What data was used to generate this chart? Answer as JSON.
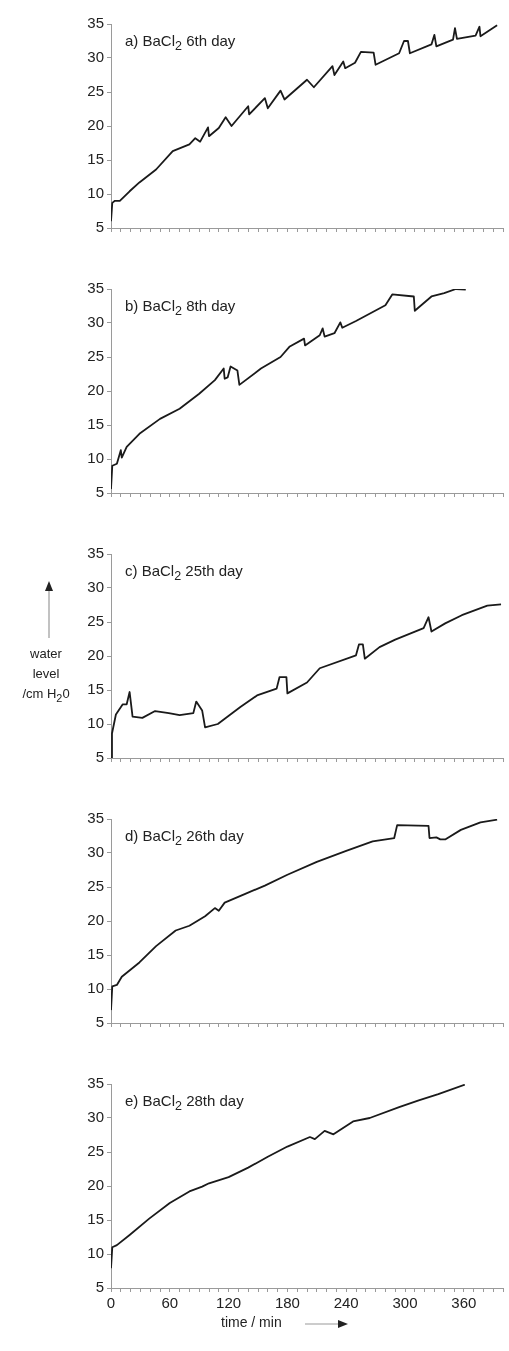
{
  "chart_data": [
    {
      "type": "line",
      "title": "a) BaCl$_{2}$ 6th day",
      "color": "#1a1a1a",
      "marker": "none",
      "tick_labels": "y",
      "xlim": [
        0,
        400
      ],
      "ylim": [
        5,
        35
      ],
      "yticks": [
        5,
        10,
        15,
        20,
        25,
        30,
        35
      ],
      "xticks": [
        0,
        {
          "value": 10,
          "label": null
        },
        {
          "value": 20,
          "label": null
        },
        {
          "value": 30,
          "label": null
        },
        {
          "value": 40,
          "label": null
        },
        {
          "value": 50,
          "label": null
        },
        60,
        {
          "value": 70,
          "label": null
        },
        {
          "value": 80,
          "label": null
        },
        {
          "value": 90,
          "label": null
        },
        {
          "value": 100,
          "label": null
        },
        {
          "value": 110,
          "label": null
        },
        120,
        {
          "value": 130,
          "label": null
        },
        {
          "value": 140,
          "label": null
        },
        {
          "value": 150,
          "label": null
        },
        {
          "value": 160,
          "label": null
        },
        {
          "value": 170,
          "label": null
        },
        180,
        {
          "value": 190,
          "label": null
        },
        {
          "value": 200,
          "label": null
        },
        {
          "value": 210,
          "label": null
        },
        {
          "value": 220,
          "label": null
        },
        {
          "value": 230,
          "label": null
        },
        240,
        {
          "value": 250,
          "label": null
        },
        {
          "value": 260,
          "label": null
        },
        {
          "value": 270,
          "label": null
        },
        {
          "value": 280,
          "label": null
        },
        {
          "value": 290,
          "label": null
        },
        300,
        {
          "value": 310,
          "label": null
        },
        {
          "value": 320,
          "label": null
        },
        {
          "value": 330,
          "label": null
        },
        {
          "value": 340,
          "label": null
        },
        {
          "value": 350,
          "label": null
        },
        360,
        {
          "value": 370,
          "label": null
        },
        {
          "value": 380,
          "label": null
        },
        {
          "value": 390,
          "label": null
        },
        {
          "value": 400,
          "label": null
        }
      ],
      "x": [
        0,
        1.3,
        4,
        9,
        19,
        29,
        46,
        63,
        80,
        86,
        91,
        99,
        100,
        110,
        117,
        123,
        140,
        141,
        157,
        160,
        173,
        177,
        200,
        207,
        226,
        228,
        237,
        239,
        249,
        255,
        268,
        270,
        294,
        299,
        303,
        305,
        327,
        330,
        332,
        349,
        351,
        353,
        372,
        376,
        377,
        394
      ],
      "values": [
        6.0,
        8.7,
        9.0,
        9.0,
        10.4,
        11.7,
        13.6,
        16.3,
        17.3,
        18.2,
        17.7,
        19.8,
        18.5,
        19.7,
        21.3,
        20.0,
        22.9,
        21.7,
        24.1,
        22.6,
        25.2,
        23.9,
        26.8,
        25.7,
        28.8,
        27.5,
        29.5,
        28.5,
        29.3,
        30.9,
        30.8,
        29.0,
        30.7,
        32.5,
        32.5,
        30.7,
        32.0,
        33.4,
        31.7,
        32.7,
        34.4,
        32.8,
        33.3,
        34.6,
        33.2,
        34.8
      ]
    },
    {
      "type": "line",
      "title": "b) BaCl$_{2}$ 8th day",
      "color": "#1a1a1a",
      "marker": "none",
      "tick_labels": "y",
      "xlim": [
        0,
        400
      ],
      "ylim": [
        5,
        35
      ],
      "yticks": [
        5,
        10,
        15,
        20,
        25,
        30,
        35
      ],
      "xticks": [
        0,
        {
          "value": 10,
          "label": null
        },
        {
          "value": 20,
          "label": null
        },
        {
          "value": 30,
          "label": null
        },
        {
          "value": 40,
          "label": null
        },
        {
          "value": 50,
          "label": null
        },
        60,
        {
          "value": 70,
          "label": null
        },
        {
          "value": 80,
          "label": null
        },
        {
          "value": 90,
          "label": null
        },
        {
          "value": 100,
          "label": null
        },
        {
          "value": 110,
          "label": null
        },
        120,
        {
          "value": 130,
          "label": null
        },
        {
          "value": 140,
          "label": null
        },
        {
          "value": 150,
          "label": null
        },
        {
          "value": 160,
          "label": null
        },
        {
          "value": 170,
          "label": null
        },
        180,
        {
          "value": 190,
          "label": null
        },
        {
          "value": 200,
          "label": null
        },
        {
          "value": 210,
          "label": null
        },
        {
          "value": 220,
          "label": null
        },
        {
          "value": 230,
          "label": null
        },
        240,
        {
          "value": 250,
          "label": null
        },
        {
          "value": 260,
          "label": null
        },
        {
          "value": 270,
          "label": null
        },
        {
          "value": 280,
          "label": null
        },
        {
          "value": 290,
          "label": null
        },
        300,
        {
          "value": 310,
          "label": null
        },
        {
          "value": 320,
          "label": null
        },
        {
          "value": 330,
          "label": null
        },
        {
          "value": 340,
          "label": null
        },
        {
          "value": 350,
          "label": null
        },
        360,
        {
          "value": 370,
          "label": null
        },
        {
          "value": 380,
          "label": null
        },
        {
          "value": 390,
          "label": null
        },
        {
          "value": 400,
          "label": null
        }
      ],
      "x": [
        0,
        1.3,
        6,
        10,
        11,
        16,
        29,
        50,
        70,
        90,
        106,
        115,
        116,
        119,
        122,
        129,
        131,
        153,
        173,
        182,
        197,
        198,
        213,
        216,
        218,
        228,
        234,
        236,
        250,
        280,
        287,
        309,
        310,
        327,
        340,
        352,
        362
      ],
      "values": [
        5.6,
        9.0,
        9.3,
        11.3,
        10.2,
        11.8,
        13.7,
        15.9,
        17.4,
        19.6,
        21.6,
        23.3,
        21.8,
        22.0,
        23.6,
        23.0,
        20.9,
        23.3,
        25.0,
        26.5,
        27.7,
        26.7,
        28.2,
        29.2,
        28.0,
        28.5,
        30.1,
        29.3,
        30.3,
        32.6,
        34.2,
        33.9,
        31.8,
        33.9,
        34.4,
        35.0,
        34.9
      ]
    },
    {
      "type": "line",
      "title": "c) BaCl$_{2}$ 25th day",
      "ylabel": "water\nlevel\n/cm H$_{2}$0",
      "color": "#1a1a1a",
      "marker": "none",
      "tick_labels": "y",
      "xlim": [
        0,
        400
      ],
      "ylim": [
        5,
        35
      ],
      "yticks": [
        5,
        10,
        15,
        20,
        25,
        30,
        35
      ],
      "xticks": [
        0,
        {
          "value": 10,
          "label": null
        },
        {
          "value": 20,
          "label": null
        },
        {
          "value": 30,
          "label": null
        },
        {
          "value": 40,
          "label": null
        },
        {
          "value": 50,
          "label": null
        },
        60,
        {
          "value": 70,
          "label": null
        },
        {
          "value": 80,
          "label": null
        },
        {
          "value": 90,
          "label": null
        },
        {
          "value": 100,
          "label": null
        },
        {
          "value": 110,
          "label": null
        },
        120,
        {
          "value": 130,
          "label": null
        },
        {
          "value": 140,
          "label": null
        },
        {
          "value": 150,
          "label": null
        },
        {
          "value": 160,
          "label": null
        },
        {
          "value": 170,
          "label": null
        },
        180,
        {
          "value": 190,
          "label": null
        },
        {
          "value": 200,
          "label": null
        },
        {
          "value": 210,
          "label": null
        },
        {
          "value": 220,
          "label": null
        },
        {
          "value": 230,
          "label": null
        },
        240,
        {
          "value": 250,
          "label": null
        },
        {
          "value": 260,
          "label": null
        },
        {
          "value": 270,
          "label": null
        },
        {
          "value": 280,
          "label": null
        },
        {
          "value": 290,
          "label": null
        },
        300,
        {
          "value": 310,
          "label": null
        },
        {
          "value": 320,
          "label": null
        },
        {
          "value": 330,
          "label": null
        },
        {
          "value": 340,
          "label": null
        },
        {
          "value": 350,
          "label": null
        },
        360,
        {
          "value": 370,
          "label": null
        },
        {
          "value": 380,
          "label": null
        },
        {
          "value": 390,
          "label": null
        },
        {
          "value": 400,
          "label": null
        }
      ],
      "x": [
        0,
        1,
        5,
        12,
        16,
        19,
        22,
        32,
        45,
        59,
        70,
        84,
        87,
        93,
        96,
        109,
        132,
        149,
        169,
        172,
        179,
        180,
        200,
        213,
        250,
        253,
        257,
        259,
        274,
        290,
        319,
        324,
        327,
        341,
        358,
        384,
        398
      ],
      "values": [
        5.0,
        8.6,
        11.4,
        12.9,
        12.9,
        14.7,
        11.1,
        10.9,
        11.9,
        11.6,
        11.3,
        11.6,
        13.3,
        12.0,
        9.5,
        10.0,
        12.5,
        14.2,
        15.2,
        16.9,
        16.9,
        14.5,
        16.1,
        18.2,
        20.1,
        21.7,
        21.7,
        19.6,
        21.3,
        22.4,
        24.1,
        25.7,
        23.6,
        24.8,
        26.0,
        27.4,
        27.6
      ]
    },
    {
      "type": "line",
      "title": "d) BaCl$_{2}$ 26th day",
      "color": "#1a1a1a",
      "marker": "none",
      "tick_labels": "y",
      "xlim": [
        0,
        400
      ],
      "ylim": [
        5,
        35
      ],
      "yticks": [
        5,
        10,
        15,
        20,
        25,
        30,
        35
      ],
      "xticks": [
        0,
        {
          "value": 10,
          "label": null
        },
        {
          "value": 20,
          "label": null
        },
        {
          "value": 30,
          "label": null
        },
        {
          "value": 40,
          "label": null
        },
        {
          "value": 50,
          "label": null
        },
        60,
        {
          "value": 70,
          "label": null
        },
        {
          "value": 80,
          "label": null
        },
        {
          "value": 90,
          "label": null
        },
        {
          "value": 100,
          "label": null
        },
        {
          "value": 110,
          "label": null
        },
        120,
        {
          "value": 130,
          "label": null
        },
        {
          "value": 140,
          "label": null
        },
        {
          "value": 150,
          "label": null
        },
        {
          "value": 160,
          "label": null
        },
        {
          "value": 170,
          "label": null
        },
        180,
        {
          "value": 190,
          "label": null
        },
        {
          "value": 200,
          "label": null
        },
        {
          "value": 210,
          "label": null
        },
        {
          "value": 220,
          "label": null
        },
        {
          "value": 230,
          "label": null
        },
        240,
        {
          "value": 250,
          "label": null
        },
        {
          "value": 260,
          "label": null
        },
        {
          "value": 270,
          "label": null
        },
        {
          "value": 280,
          "label": null
        },
        {
          "value": 290,
          "label": null
        },
        300,
        {
          "value": 310,
          "label": null
        },
        {
          "value": 320,
          "label": null
        },
        {
          "value": 330,
          "label": null
        },
        {
          "value": 340,
          "label": null
        },
        {
          "value": 350,
          "label": null
        },
        360,
        {
          "value": 370,
          "label": null
        },
        {
          "value": 380,
          "label": null
        },
        {
          "value": 390,
          "label": null
        },
        {
          "value": 400,
          "label": null
        }
      ],
      "x": [
        0,
        1.3,
        6,
        11,
        29,
        46,
        66,
        80,
        96,
        106,
        110,
        116,
        137,
        157,
        180,
        210,
        240,
        267,
        289,
        292,
        324,
        325,
        332,
        336,
        341,
        357,
        377,
        394
      ],
      "values": [
        6.9,
        10.4,
        10.6,
        11.8,
        13.9,
        16.3,
        18.6,
        19.3,
        20.7,
        21.9,
        21.5,
        22.7,
        24.0,
        25.2,
        26.8,
        28.7,
        30.3,
        31.7,
        32.2,
        34.1,
        34.0,
        32.2,
        32.3,
        32.0,
        32.0,
        33.4,
        34.5,
        34.9
      ]
    },
    {
      "type": "line",
      "title": "e) BaCl$_{2}$ 28th day",
      "xlabel": "time / min",
      "color": "#1a1a1a",
      "marker": "none",
      "xlim": [
        0,
        400
      ],
      "ylim": [
        5,
        35
      ],
      "yticks": [
        5,
        10,
        15,
        20,
        25,
        30,
        35
      ],
      "xticks": [
        0,
        {
          "value": 10,
          "label": null
        },
        {
          "value": 20,
          "label": null
        },
        {
          "value": 30,
          "label": null
        },
        {
          "value": 40,
          "label": null
        },
        {
          "value": 50,
          "label": null
        },
        60,
        {
          "value": 70,
          "label": null
        },
        {
          "value": 80,
          "label": null
        },
        {
          "value": 90,
          "label": null
        },
        {
          "value": 100,
          "label": null
        },
        {
          "value": 110,
          "label": null
        },
        120,
        {
          "value": 130,
          "label": null
        },
        {
          "value": 140,
          "label": null
        },
        {
          "value": 150,
          "label": null
        },
        {
          "value": 160,
          "label": null
        },
        {
          "value": 170,
          "label": null
        },
        180,
        {
          "value": 190,
          "label": null
        },
        {
          "value": 200,
          "label": null
        },
        {
          "value": 210,
          "label": null
        },
        {
          "value": 220,
          "label": null
        },
        {
          "value": 230,
          "label": null
        },
        240,
        {
          "value": 250,
          "label": null
        },
        {
          "value": 260,
          "label": null
        },
        {
          "value": 270,
          "label": null
        },
        {
          "value": 280,
          "label": null
        },
        {
          "value": 290,
          "label": null
        },
        300,
        {
          "value": 310,
          "label": null
        },
        {
          "value": 320,
          "label": null
        },
        {
          "value": 330,
          "label": null
        },
        {
          "value": 340,
          "label": null
        },
        {
          "value": 350,
          "label": null
        },
        360,
        {
          "value": 370,
          "label": null
        },
        {
          "value": 380,
          "label": null
        },
        {
          "value": 390,
          "label": null
        },
        {
          "value": 400,
          "label": null
        }
      ],
      "x": [
        0,
        1.3,
        6,
        19,
        39,
        60,
        80,
        93,
        100,
        120,
        140,
        160,
        180,
        203,
        208,
        218,
        227,
        247,
        264,
        294,
        314,
        334,
        361
      ],
      "values": [
        7.9,
        11.0,
        11.3,
        12.8,
        15.2,
        17.5,
        19.2,
        19.9,
        20.4,
        21.3,
        22.7,
        24.3,
        25.8,
        27.2,
        26.9,
        28.1,
        27.6,
        29.5,
        30.0,
        31.6,
        32.6,
        33.5,
        34.9
      ]
    }
  ]
}
